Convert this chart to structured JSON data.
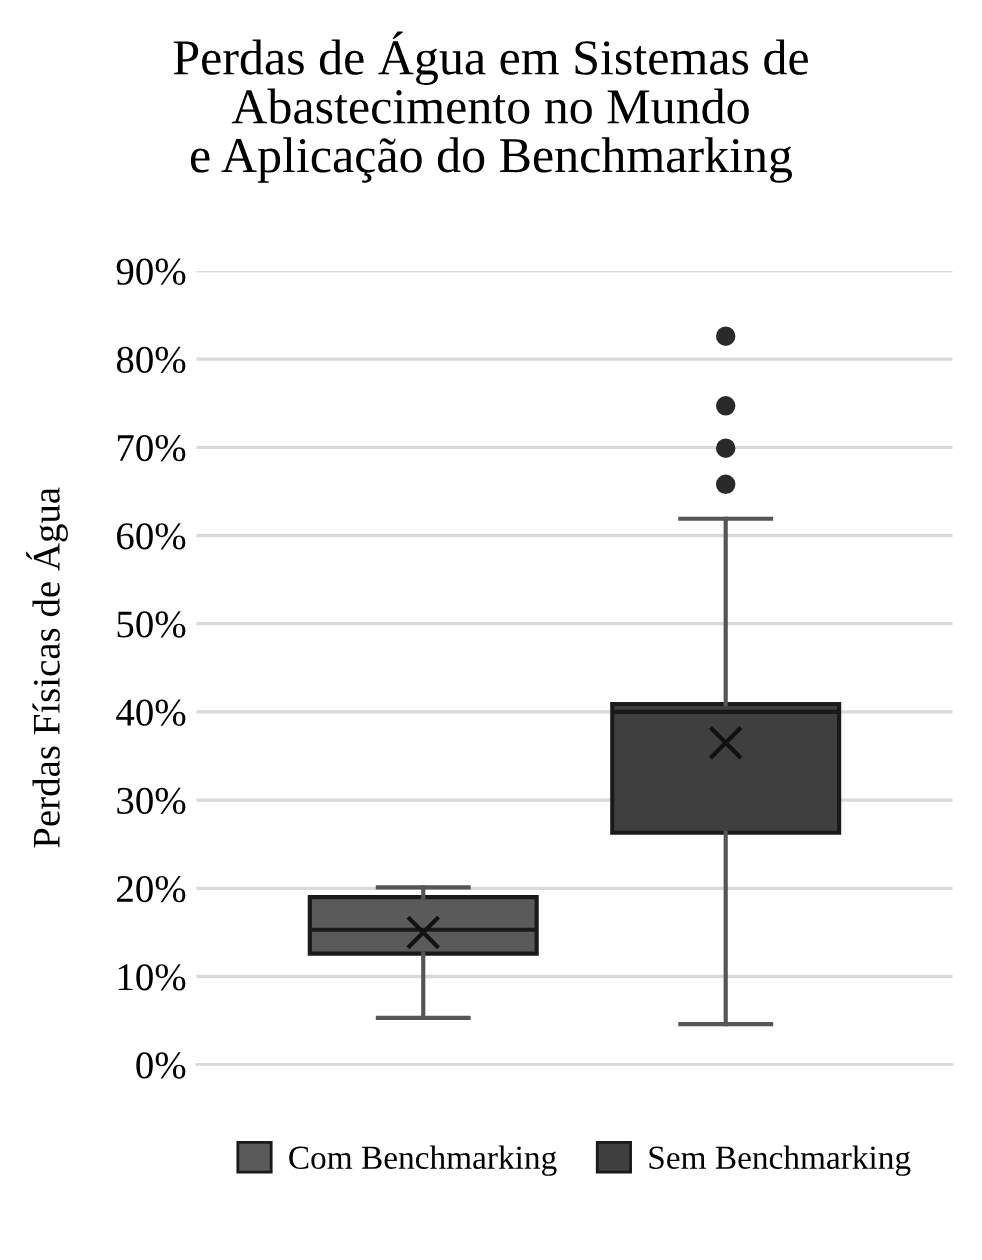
{
  "chart_data": {
    "type": "box",
    "title": "Perdas de Água em Sistemas de\nAbastecimento no Mundo\ne Aplicação do Benchmarking",
    "ylabel": "Perdas Físicas de Água",
    "categories": [
      null
    ],
    "series": [
      {
        "name": "Com Benchmarking",
        "color": "#5a5a5a",
        "boxes": [
          {
            "low": 5.3,
            "q1": 12.6,
            "median": 15.3,
            "q3": 19.0,
            "high": 20.1,
            "mean": 15.0
          }
        ]
      },
      {
        "name": "Sem Benchmarking",
        "color": "#3f3f3f",
        "boxes": [
          {
            "low": 4.6,
            "q1": 26.3,
            "median": 40.0,
            "q3": 40.9,
            "high": 61.9,
            "mean": 36.5,
            "outliers": [
              65.8,
              69.9,
              74.7,
              82.6
            ]
          }
        ]
      }
    ],
    "ylim": [
      0,
      90
    ],
    "yticks": [
      {
        "value": 0,
        "label": "0%"
      },
      {
        "value": 10,
        "label": "10%"
      },
      {
        "value": 20,
        "label": "20%"
      },
      {
        "value": 30,
        "label": "30%"
      },
      {
        "value": 40,
        "label": "40%"
      },
      {
        "value": 50,
        "label": "50%"
      },
      {
        "value": 60,
        "label": "60%"
      },
      {
        "value": 70,
        "label": "70%"
      },
      {
        "value": 80,
        "label": "80%"
      },
      {
        "value": 90,
        "label": "90%"
      }
    ],
    "grid": "y",
    "legend": "bottom"
  }
}
